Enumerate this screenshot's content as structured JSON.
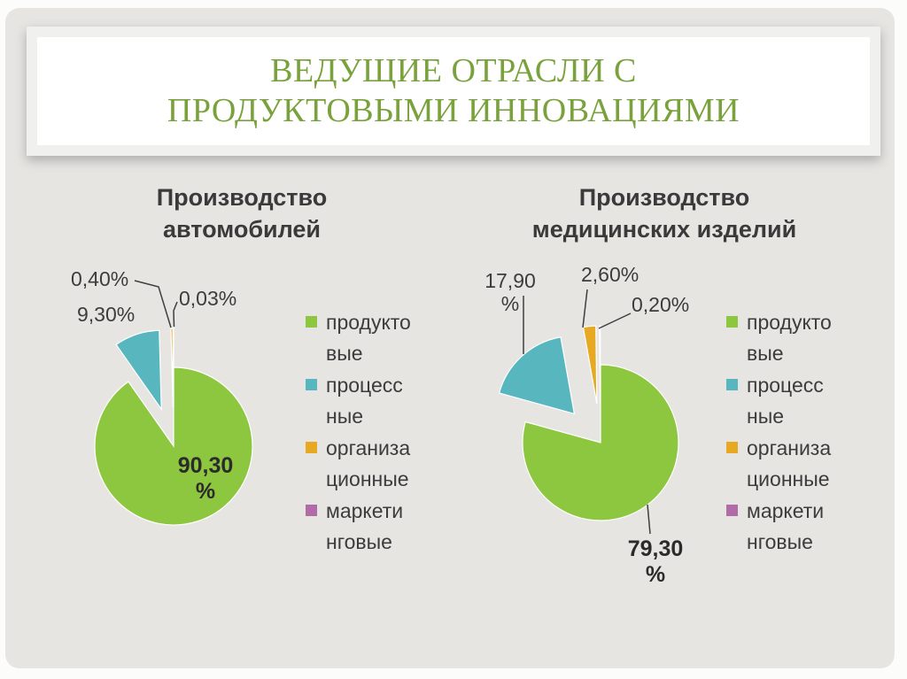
{
  "slide": {
    "title": "ВЕДУЩИЕ ОТРАСЛИ С\nПРОДУКТОВЫМИ ИННОВАЦИЯМИ",
    "title_color": "#7aa23c",
    "background_color": "#e6e5e2"
  },
  "chart_data": [
    {
      "type": "pie",
      "title": "Производство\nавтомобилей",
      "labels": [
        "продуктовые",
        "процессные",
        "организационные",
        "маркетинговые"
      ],
      "values": [
        90.3,
        9.3,
        0.4,
        0.03
      ],
      "colors": [
        "#8dc63f",
        "#57b6be",
        "#e7a922",
        "#b16ca8"
      ],
      "slice_labels": [
        "90,30\n%",
        "9,30%",
        "0,40%",
        "0,03%"
      ],
      "legend_labels": [
        "продукто\nвые",
        "процесс\nные",
        "организа\nционные",
        "маркети\nнговые"
      ],
      "legend_position": "right",
      "start_angle_deg": 0,
      "direction": "clockwise"
    },
    {
      "type": "pie",
      "title": "Производство\nмедицинских изделий",
      "labels": [
        "продуктовые",
        "процессные",
        "организационные",
        "маркетинговые"
      ],
      "values": [
        79.3,
        17.9,
        2.6,
        0.2
      ],
      "colors": [
        "#8dc63f",
        "#57b6be",
        "#e7a922",
        "#b16ca8"
      ],
      "slice_labels": [
        "79,30\n%",
        "17,90\n%",
        "2,60%",
        "0,20%"
      ],
      "legend_labels": [
        "продукто\nвые",
        "процесс\nные",
        "организа\nционные",
        "маркети\nнговые"
      ],
      "legend_position": "right",
      "start_angle_deg": 0,
      "direction": "clockwise"
    }
  ]
}
